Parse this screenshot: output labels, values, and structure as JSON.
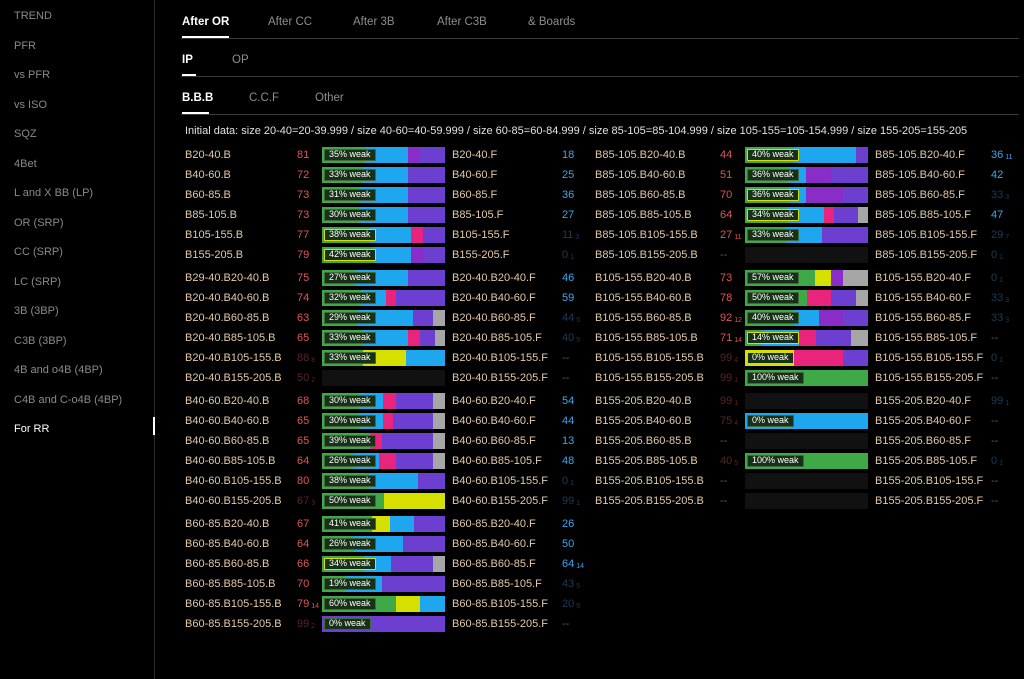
{
  "sidebar": {
    "items": [
      "TREND",
      "PFR",
      "vs PFR",
      "vs ISO",
      "SQZ",
      "4Bet",
      "L and X BB (LP)",
      "OR (SRP)",
      "CC (SRP)",
      "LC (SRP)",
      "3B (3BP)",
      "C3B (3BP)",
      "4B and o4B (4BP)",
      "C4B and C-o4B (4BP)",
      "For RR"
    ],
    "active": "For RR"
  },
  "tabs": {
    "level1": [
      "After OR",
      "After CC",
      "After 3B",
      "After C3B",
      "& Boards"
    ],
    "level2": [
      "IP",
      "OP"
    ],
    "level3": [
      "B.B.B",
      "C.C.F",
      "Other"
    ]
  },
  "info": "Initial data: size 20-40=20-39.999 / size 40-60=40-59.999 / size 60-85=60-84.999 / size 85-105=85-104.999 / size 105-155=105-154.999 / size 155-205=155-205",
  "colors": {
    "green": "#3fa847",
    "yellow": "#d5e000",
    "blue": "#1ea6ee",
    "pink": "#e8247c",
    "purple": "#8a2cc8",
    "violet": "#6d3fd0",
    "gray": "#a6a6a6",
    "red_num": "#e05555",
    "blue_num": "#3aa8ee"
  },
  "rows_left": [
    {
      "l": "B20-40.B",
      "n": "81",
      "nc": "r",
      "pill": "35% weak",
      "segs": [
        [
          "green",
          35
        ],
        [
          "blue",
          35
        ],
        [
          "purple",
          10
        ],
        [
          "violet",
          20
        ]
      ],
      "f": "B20-40.F",
      "fn": "18",
      "fc": "b"
    },
    {
      "l": "B40-60.B",
      "n": "72",
      "nc": "r",
      "pill": "33% weak",
      "segs": [
        [
          "green",
          33
        ],
        [
          "blue",
          37
        ],
        [
          "violet",
          30
        ]
      ],
      "f": "B40-60.F",
      "fn": "25",
      "fc": "b"
    },
    {
      "l": "B60-85.B",
      "n": "73",
      "nc": "r",
      "pill": "31% weak",
      "segs": [
        [
          "green",
          31
        ],
        [
          "blue",
          39
        ],
        [
          "violet",
          30
        ]
      ],
      "f": "B60-85.F",
      "fn": "36",
      "fc": "b"
    },
    {
      "l": "B85-105.B",
      "n": "73",
      "nc": "r",
      "pill": "30% weak",
      "segs": [
        [
          "green",
          30
        ],
        [
          "blue",
          40
        ],
        [
          "violet",
          30
        ]
      ],
      "f": "B85-105.F",
      "fn": "27",
      "fc": "b"
    },
    {
      "l": "B105-155.B",
      "n": "77",
      "nc": "r",
      "pill": "38% weak",
      "yp": true,
      "segs": [
        [
          "green",
          38
        ],
        [
          "blue",
          34
        ],
        [
          "pink",
          10
        ],
        [
          "violet",
          18
        ]
      ],
      "f": "B105-155.F",
      "fn": "11",
      "fs": "3",
      "fc": "db"
    },
    {
      "l": "B155-205.B",
      "n": "79",
      "nc": "r",
      "pill": "42% weak",
      "yp": true,
      "segs": [
        [
          "green",
          42
        ],
        [
          "blue",
          30
        ],
        [
          "purple",
          10
        ],
        [
          "violet",
          18
        ]
      ],
      "f": "B155-205.F",
      "fn": "0",
      "fs": "1",
      "fc": "db"
    },
    {
      "gap": true
    },
    {
      "l": "B29-40.B20-40.B",
      "n": "75",
      "nc": "r",
      "pill": "27% weak",
      "segs": [
        [
          "green",
          27
        ],
        [
          "blue",
          43
        ],
        [
          "violet",
          30
        ]
      ],
      "f": "B20-40.B20-40.F",
      "fn": "46",
      "fc": "b"
    },
    {
      "l": "B20-40.B40-60.B",
      "n": "74",
      "nc": "r",
      "pill": "32% weak",
      "segs": [
        [
          "green",
          32
        ],
        [
          "blue",
          20
        ],
        [
          "pink",
          8
        ],
        [
          "violet",
          40
        ]
      ],
      "f": "B20-40.B40-60.F",
      "fn": "59",
      "fc": "b"
    },
    {
      "l": "B20-40.B60-85.B",
      "n": "63",
      "nc": "r",
      "pill": "29% weak",
      "segs": [
        [
          "green",
          29
        ],
        [
          "blue",
          45
        ],
        [
          "violet",
          16
        ],
        [
          "gray",
          10
        ]
      ],
      "f": "B20-40.B60-85.F",
      "fn": "44",
      "fs": "5",
      "fc": "db"
    },
    {
      "l": "B20-40.B85-105.B",
      "n": "65",
      "nc": "r",
      "pill": "33% weak",
      "segs": [
        [
          "green",
          33
        ],
        [
          "blue",
          37
        ],
        [
          "pink",
          10
        ],
        [
          "violet",
          12
        ],
        [
          "gray",
          8
        ]
      ],
      "f": "B20-40.B85-105.F",
      "fn": "40",
      "fs": "5",
      "fc": "db"
    },
    {
      "l": "B20-40.B105-155.B",
      "n": "88",
      "ns": "8",
      "nc": "dr",
      "pill": "33% weak",
      "segs": [
        [
          "green",
          33
        ],
        [
          "yellow",
          35
        ],
        [
          "blue",
          32
        ]
      ],
      "f": "B20-40.B105-155.F",
      "fn": "--",
      "fc": "dash"
    },
    {
      "l": "B20-40.B155-205.B",
      "n": "50",
      "ns": "2",
      "nc": "dr",
      "segs": [],
      "f": "B20-40.B155-205.F",
      "fn": "--",
      "fc": "dash"
    },
    {
      "gap": true
    },
    {
      "l": "B40-60.B20-40.B",
      "n": "68",
      "nc": "r",
      "pill": "30% weak",
      "segs": [
        [
          "green",
          30
        ],
        [
          "blue",
          20
        ],
        [
          "pink",
          10
        ],
        [
          "violet",
          30
        ],
        [
          "gray",
          10
        ]
      ],
      "f": "B40-60.B20-40.F",
      "fn": "54",
      "fc": "b"
    },
    {
      "l": "B40-60.B40-60.B",
      "n": "65",
      "nc": "r",
      "pill": "30% weak",
      "segs": [
        [
          "green",
          30
        ],
        [
          "blue",
          20
        ],
        [
          "pink",
          8
        ],
        [
          "violet",
          32
        ],
        [
          "gray",
          10
        ]
      ],
      "f": "B40-60.B40-60.F",
      "fn": "44",
      "fc": "b"
    },
    {
      "l": "B40-60.B60-85.B",
      "n": "65",
      "nc": "r",
      "pill": "39% weak",
      "segs": [
        [
          "green",
          39
        ],
        [
          "pink",
          10
        ],
        [
          "violet",
          41
        ],
        [
          "gray",
          10
        ]
      ],
      "f": "B40-60.B60-85.F",
      "fn": "13",
      "fc": "b"
    },
    {
      "l": "B40-60.B85-105.B",
      "n": "64",
      "nc": "r",
      "pill": "26% weak",
      "segs": [
        [
          "green",
          26
        ],
        [
          "blue",
          20
        ],
        [
          "pink",
          14
        ],
        [
          "violet",
          30
        ],
        [
          "gray",
          10
        ]
      ],
      "f": "B40-60.B85-105.F",
      "fn": "48",
      "fc": "b"
    },
    {
      "l": "B40-60.B105-155.B",
      "n": "80",
      "nc": "r",
      "pill": "38% weak",
      "segs": [
        [
          "green",
          38
        ],
        [
          "blue",
          40
        ],
        [
          "violet",
          22
        ]
      ],
      "f": "B40-60.B105-155.F",
      "fn": "0",
      "fs": "1",
      "fc": "db"
    },
    {
      "l": "B40-60.B155-205.B",
      "n": "67",
      "ns": "3",
      "nc": "dr",
      "pill": "50% weak",
      "segs": [
        [
          "green",
          50
        ],
        [
          "yellow",
          50
        ]
      ],
      "f": "B40-60.B155-205.F",
      "fn": "99",
      "fs": "1",
      "fc": "db"
    },
    {
      "gap": true
    },
    {
      "l": "B60-85.B20-40.B",
      "n": "67",
      "nc": "r",
      "pill": "41% weak",
      "segs": [
        [
          "green",
          41
        ],
        [
          "yellow",
          14
        ],
        [
          "blue",
          20
        ],
        [
          "violet",
          25
        ]
      ],
      "f": "B60-85.B20-40.F",
      "fn": "26",
      "fc": "b"
    },
    {
      "l": "B60-85.B40-60.B",
      "n": "64",
      "nc": "r",
      "pill": "26% weak",
      "segs": [
        [
          "green",
          26
        ],
        [
          "blue",
          40
        ],
        [
          "violet",
          34
        ]
      ],
      "f": "B60-85.B40-60.F",
      "fn": "50",
      "fc": "b"
    },
    {
      "l": "B60-85.B60-85.B",
      "n": "66",
      "nc": "r",
      "pill": "34% weak",
      "yp": true,
      "segs": [
        [
          "green",
          34
        ],
        [
          "blue",
          22
        ],
        [
          "violet",
          34
        ],
        [
          "gray",
          10
        ]
      ],
      "f": "B60-85.B60-85.F",
      "fn": "64",
      "fs": "14",
      "fc": "b"
    },
    {
      "l": "B60-85.B85-105.B",
      "n": "70",
      "nc": "r",
      "pill": "19% weak",
      "segs": [
        [
          "green",
          19
        ],
        [
          "blue",
          30
        ],
        [
          "violet",
          51
        ]
      ],
      "f": "B60-85.B85-105.F",
      "fn": "43",
      "fs": "5",
      "fc": "db"
    },
    {
      "l": "B60-85.B105-155.B",
      "n": "79",
      "ns": "14",
      "nc": "r",
      "pill": "60% weak",
      "segs": [
        [
          "green",
          60
        ],
        [
          "yellow",
          20
        ],
        [
          "blue",
          20
        ]
      ],
      "f": "B60-85.B105-155.F",
      "fn": "20",
      "fs": "5",
      "fc": "db"
    },
    {
      "l": "B60-85.B155-205.B",
      "n": "99",
      "ns": "2",
      "nc": "dr",
      "pill": "0% weak",
      "segs": [
        [
          "violet",
          100
        ]
      ],
      "f": "B60-85.B155-205.F",
      "fn": "--",
      "fc": "dash"
    }
  ],
  "rows_right": [
    {
      "l": "B85-105.B20-40.B",
      "n": "44",
      "nc": "r",
      "pill": "40% weak",
      "yp": true,
      "segs": [
        [
          "green",
          40
        ],
        [
          "blue",
          50
        ],
        [
          "violet",
          10
        ]
      ],
      "f": "B85-105.B20-40.F",
      "fn": "36",
      "fs": "11",
      "fc": "b"
    },
    {
      "l": "B85-105.B40-60.B",
      "n": "51",
      "nc": "r",
      "pill": "36% weak",
      "segs": [
        [
          "green",
          36
        ],
        [
          "blue",
          14
        ],
        [
          "purple",
          20
        ],
        [
          "violet",
          30
        ]
      ],
      "f": "B85-105.B40-60.F",
      "fn": "42",
      "fc": "b"
    },
    {
      "l": "B85-105.B60-85.B",
      "n": "70",
      "nc": "r",
      "pill": "36% weak",
      "yp": true,
      "segs": [
        [
          "green",
          36
        ],
        [
          "blue",
          14
        ],
        [
          "purple",
          30
        ],
        [
          "violet",
          20
        ]
      ],
      "f": "B85-105.B60-85.F",
      "fn": "33",
      "fs": "3",
      "fc": "db"
    },
    {
      "l": "B85-105.B85-105.B",
      "n": "64",
      "nc": "r",
      "pill": "34% weak",
      "yp": true,
      "segs": [
        [
          "green",
          34
        ],
        [
          "blue",
          30
        ],
        [
          "pink",
          8
        ],
        [
          "violet",
          20
        ],
        [
          "gray",
          8
        ]
      ],
      "f": "B85-105.B85-105.F",
      "fn": "47",
      "fc": "b"
    },
    {
      "l": "B85-105.B105-155.B",
      "n": "27",
      "ns": "11",
      "nc": "r",
      "pill": "33% weak",
      "segs": [
        [
          "green",
          33
        ],
        [
          "blue",
          30
        ],
        [
          "violet",
          37
        ]
      ],
      "f": "B85-105.B105-155.F",
      "fn": "29",
      "fs": "7",
      "fc": "db"
    },
    {
      "l": "B85-105.B155-205.B",
      "n": "--",
      "nc": "dash",
      "segs": [],
      "f": "B85-105.B155-205.F",
      "fn": "0",
      "fs": "1",
      "fc": "db"
    },
    {
      "gap": true
    },
    {
      "l": "B105-155.B20-40.B",
      "n": "73",
      "nc": "r",
      "pill": "57% weak",
      "segs": [
        [
          "green",
          57
        ],
        [
          "yellow",
          13
        ],
        [
          "purple",
          10
        ],
        [
          "gray",
          20
        ]
      ],
      "f": "B105-155.B20-40.F",
      "fn": "0",
      "fs": "1",
      "fc": "db"
    },
    {
      "l": "B105-155.B40-60.B",
      "n": "78",
      "nc": "r",
      "pill": "50% weak",
      "segs": [
        [
          "green",
          50
        ],
        [
          "pink",
          20
        ],
        [
          "violet",
          20
        ],
        [
          "gray",
          10
        ]
      ],
      "f": "B105-155.B40-60.F",
      "fn": "33",
      "fs": "3",
      "fc": "db"
    },
    {
      "l": "B105-155.B60-85.B",
      "n": "92",
      "ns": "12",
      "nc": "r",
      "pill": "40% weak",
      "segs": [
        [
          "green",
          40
        ],
        [
          "blue",
          20
        ],
        [
          "purple",
          20
        ],
        [
          "violet",
          20
        ]
      ],
      "f": "B105-155.B60-85.F",
      "fn": "33",
      "fs": "3",
      "fc": "db"
    },
    {
      "l": "B105-155.B85-105.B",
      "n": "71",
      "ns": "14",
      "nc": "r",
      "pill": "14% weak",
      "yp": true,
      "segs": [
        [
          "green",
          14
        ],
        [
          "blue",
          30
        ],
        [
          "pink",
          14
        ],
        [
          "violet",
          28
        ],
        [
          "gray",
          14
        ]
      ],
      "f": "B105-155.B85-105.F",
      "fn": "--",
      "fc": "dash"
    },
    {
      "l": "B105-155.B105-155.B",
      "n": "99",
      "ns": "4",
      "nc": "dr",
      "pill": "0% weak",
      "yp": true,
      "segs": [
        [
          "yellow",
          40
        ],
        [
          "pink",
          40
        ],
        [
          "violet",
          20
        ]
      ],
      "f": "B105-155.B105-155.F",
      "fn": "0",
      "fs": "1",
      "fc": "db"
    },
    {
      "l": "B105-155.B155-205.B",
      "n": "99",
      "ns": "1",
      "nc": "dr",
      "pill": "100% weak",
      "segs": [
        [
          "green",
          100
        ]
      ],
      "f": "B105-155.B155-205.F",
      "fn": "--",
      "fc": "dash"
    },
    {
      "gap": true
    },
    {
      "l": "B155-205.B20-40.B",
      "n": "99",
      "ns": "1",
      "nc": "dr",
      "segs": [],
      "f": "B155-205.B20-40.F",
      "fn": "99",
      "fs": "1",
      "fc": "db"
    },
    {
      "l": "B155-205.B40-60.B",
      "n": "75",
      "ns": "4",
      "nc": "dr",
      "pill": "0% weak",
      "segs": [
        [
          "blue",
          100
        ]
      ],
      "f": "B155-205.B40-60.F",
      "fn": "--",
      "fc": "dash"
    },
    {
      "l": "B155-205.B60-85.B",
      "n": "--",
      "nc": "dash",
      "segs": [],
      "f": "B155-205.B60-85.F",
      "fn": "--",
      "fc": "dash"
    },
    {
      "l": "B155-205.B85-105.B",
      "n": "40",
      "ns": "5",
      "nc": "dr",
      "pill": "100% weak",
      "segs": [
        [
          "green",
          100
        ]
      ],
      "f": "B155-205.B85-105.F",
      "fn": "0",
      "fs": "1",
      "fc": "db"
    },
    {
      "l": "B155-205.B105-155.B",
      "n": "--",
      "nc": "dash",
      "segs": [],
      "f": "B155-205.B105-155.F",
      "fn": "--",
      "fc": "dash"
    },
    {
      "l": "B155-205.B155-205.B",
      "n": "--",
      "nc": "dash",
      "segs": [],
      "f": "B155-205.B155-205.F",
      "fn": "--",
      "fc": "dash"
    }
  ]
}
